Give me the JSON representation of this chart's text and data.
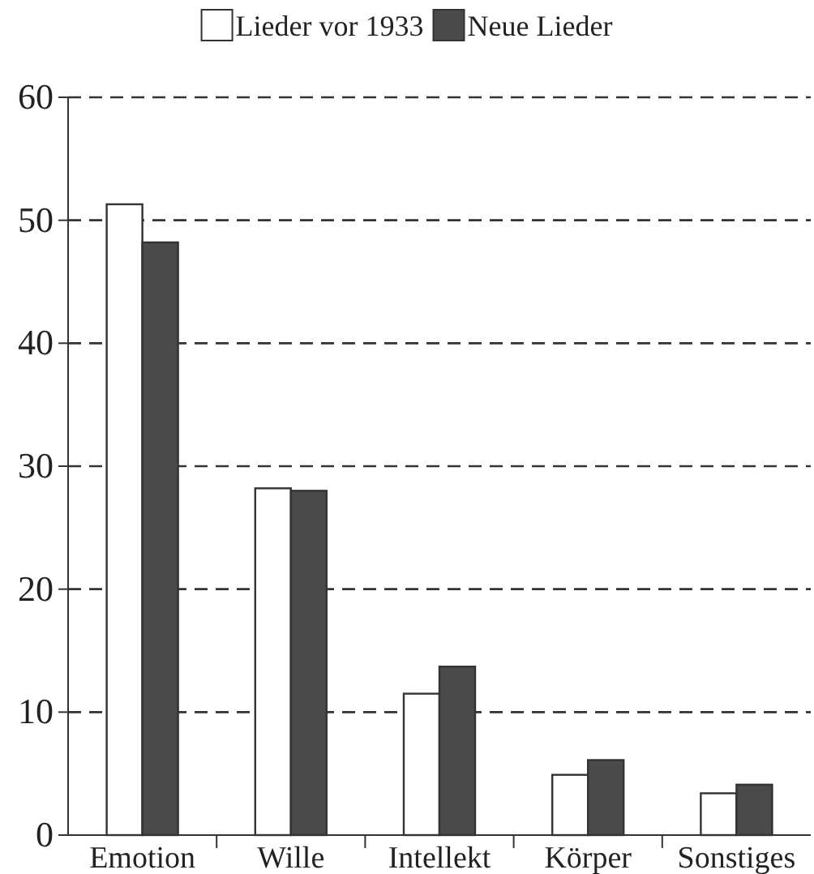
{
  "chart_data": {
    "type": "bar",
    "categories": [
      "Emotion",
      "Wille",
      "Intellekt",
      "Körper",
      "Sonstiges"
    ],
    "series": [
      {
        "name": "Lieder vor 1933",
        "color": "#ffffff",
        "values": [
          51.3,
          28.2,
          11.5,
          4.9,
          3.4
        ]
      },
      {
        "name": "Neue Lieder",
        "color": "#4a4a4a",
        "values": [
          48.2,
          28.0,
          13.7,
          6.1,
          4.1
        ]
      }
    ],
    "ylim": [
      0,
      60
    ],
    "yticks": [
      0,
      10,
      20,
      30,
      40,
      50,
      60
    ],
    "grid": "y",
    "legend": "top",
    "line_style": "dashed"
  }
}
